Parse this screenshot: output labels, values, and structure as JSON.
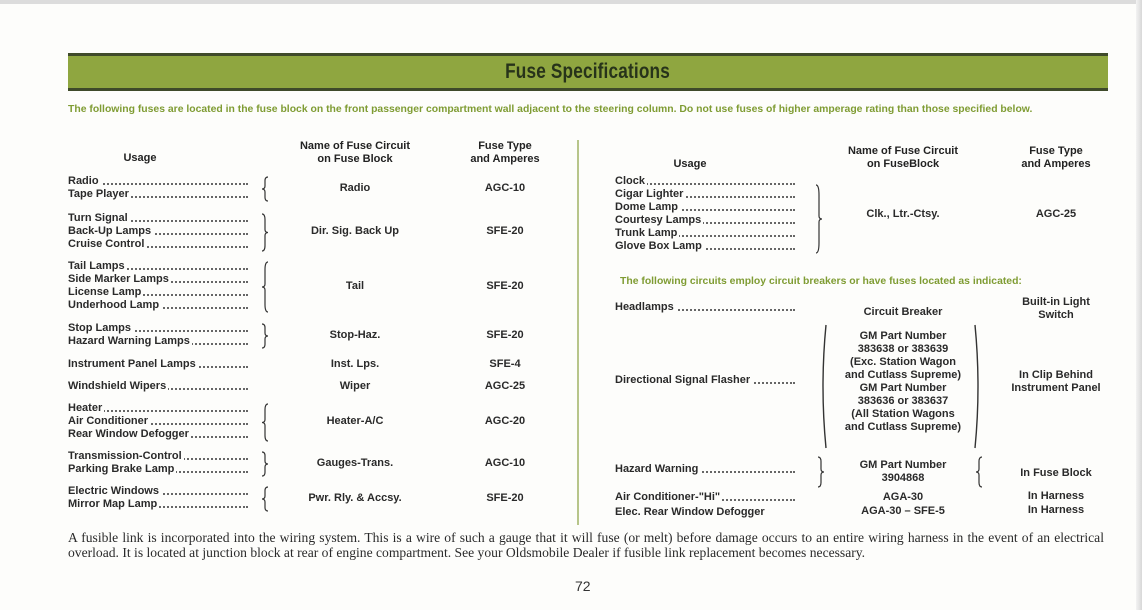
{
  "title": "Fuse Specifications",
  "intro": "The following fuses are located in the fuse block on the front passenger compartment wall adjacent to the steering column. Do not use fuses of higher amperage rating than those specified below.",
  "left_table": {
    "headers": {
      "usage": "Usage",
      "circuit": [
        "Name of Fuse Circuit",
        "on Fuse Block"
      ],
      "fuse": [
        "Fuse Type",
        "and Amperes"
      ]
    },
    "groups": [
      {
        "items": [
          "Radio",
          "Tape Player"
        ],
        "circuit": "Radio",
        "fuse": "AGC-10"
      },
      {
        "items": [
          "Turn Signal",
          "Back-Up Lamps",
          "Cruise Control"
        ],
        "circuit": "Dir. Sig. Back Up",
        "fuse": "SFE-20"
      },
      {
        "items": [
          "Tail Lamps",
          "Side Marker Lamps",
          "License Lamp",
          "Underhood Lamp"
        ],
        "circuit": "Tail",
        "fuse": "SFE-20"
      },
      {
        "items": [
          "Stop Lamps",
          "Hazard Warning Lamps"
        ],
        "circuit": "Stop-Haz.",
        "fuse": "SFE-20"
      },
      {
        "items": [
          "Instrument Panel Lamps"
        ],
        "circuit": "Inst. Lps.",
        "fuse": "SFE-4"
      },
      {
        "items": [
          "Windshield Wipers"
        ],
        "circuit": "Wiper",
        "fuse": "AGC-25"
      },
      {
        "items": [
          "Heater",
          "Air Conditioner",
          "Rear Window Defogger"
        ],
        "circuit": "Heater-A/C",
        "fuse": "AGC-20"
      },
      {
        "items": [
          "Transmission-Control",
          "Parking Brake Lamp"
        ],
        "circuit": "Gauges-Trans.",
        "fuse": "AGC-10"
      },
      {
        "items": [
          "Electric Windows",
          "Mirror Map Lamp"
        ],
        "circuit": "Pwr. Rly. & Accsy.",
        "fuse": "SFE-20"
      }
    ]
  },
  "right_table": {
    "headers": {
      "usage": "Usage",
      "circuit": [
        "Name of Fuse Circuit",
        "on FuseBlock"
      ],
      "fuse": [
        "Fuse Type",
        "and Amperes"
      ]
    },
    "groups": [
      {
        "items": [
          "Clock",
          "Cigar Lighter",
          "Dome Lamp",
          "Courtesy Lamps",
          "Trunk Lamp",
          "Glove Box Lamp"
        ],
        "circuit": "Clk., Ltr.-Ctsy.",
        "fuse": "AGC-25"
      }
    ],
    "note": "The following circuits employ circuit breakers or have fuses located as indicated:",
    "breakers": [
      {
        "usage": "Headlamps",
        "device": [
          "Circuit Breaker"
        ],
        "location": [
          "Built-in Light",
          "Switch"
        ]
      },
      {
        "usage": "Directional Signal Flasher",
        "device": [
          "GM Part Number",
          "383638 or 383639",
          "(Exc. Station Wagon",
          "and Cutlass Supreme)",
          "GM Part Number",
          "383636 or 383637",
          "(All Station Wagons",
          "and Cutlass Supreme)"
        ],
        "location": [
          "In Clip Behind",
          "Instrument Panel"
        ]
      },
      {
        "usage": "Hazard Warning",
        "device": [
          "GM Part Number",
          "3904868"
        ],
        "location": [
          "In Fuse Block"
        ]
      },
      {
        "usage": "Air Conditioner-\"Hi\"",
        "device": [
          "AGA-30"
        ],
        "location": [
          "In Harness"
        ]
      },
      {
        "usage": "Elec. Rear Window Defogger",
        "device": [
          "AGA-30 – SFE-5"
        ],
        "location": [
          "In Harness"
        ]
      }
    ]
  },
  "footer": "A fusible link is incorporated into the wiring system. This is a wire of such a gauge that it will fuse (or melt) before damage occurs to an entire wiring harness in the event of an electrical overload. It is located at junction block at rear of engine compartment. See your Oldsmobile Dealer if fusible link replacement becomes necessary.",
  "page_number": "72",
  "colors": {
    "title_bar": "#8fa640",
    "green_text": "#7f9c33",
    "title_text": "#27331a"
  }
}
